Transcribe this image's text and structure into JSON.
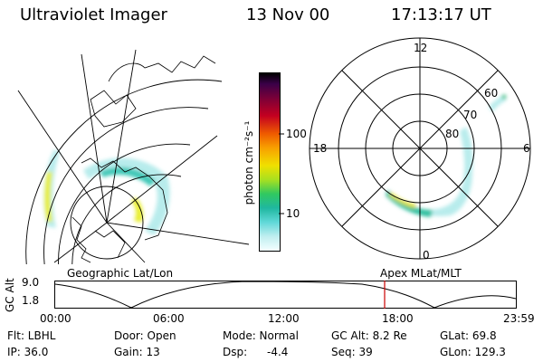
{
  "header": {
    "instrument": "Ultraviolet Imager",
    "date": "13 Nov 00",
    "time": "17:13:17 UT"
  },
  "colorbar": {
    "unit_label": "photon cm⁻²s⁻¹",
    "ticks": [
      "100",
      "10"
    ]
  },
  "polar": {
    "mlt_labels": {
      "top": "12",
      "left": "18",
      "right": "6",
      "bottom": "0"
    },
    "lat_labels": [
      "60",
      "70",
      "80"
    ]
  },
  "map_labels": {
    "geographic": "Geographic Lat/Lon",
    "apex": "Apex MLat/MLT"
  },
  "altitude_plot": {
    "axis_label": "GC Alt",
    "y_ticks": [
      "9.0",
      "1.8"
    ],
    "x_ticks": [
      "00:00",
      "06:00",
      "12:00",
      "18:00",
      "23:59"
    ],
    "marker_color": "#cc0000"
  },
  "status": {
    "flt": "Flt: LBHL",
    "ip": "IP: 36.0",
    "door": "Door: Open",
    "gain": "Gain: 13",
    "mode": "Mode: Normal",
    "dsp": "Dsp:",
    "dsp_value": "-4.4",
    "gc_alt": "GC Alt: 8.2 Re",
    "seq": "Seq: 39",
    "glat": "GLat:  69.8",
    "glon": "GLon: 129.3"
  }
}
